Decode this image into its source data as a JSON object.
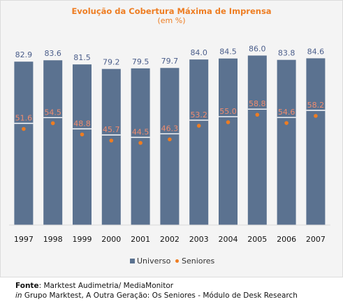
{
  "chart_data": {
    "type": "bar",
    "title": "Evolução da Cobertura Máxima de Imprensa",
    "subtitle": "(em %)",
    "categories": [
      "1997",
      "1998",
      "1999",
      "2000",
      "2001",
      "2002",
      "2003",
      "2004",
      "2005",
      "2006",
      "2007"
    ],
    "series": [
      {
        "name": "Universo",
        "values": [
          82.9,
          83.6,
          81.5,
          79.2,
          79.5,
          79.7,
          84.0,
          84.5,
          86.0,
          83.8,
          84.6
        ],
        "labels": [
          "82.9",
          "83.6",
          "81.5",
          "79.2",
          "79.5",
          "79.7",
          "84.0",
          "84.5",
          "86.0",
          "83.8",
          "84.6"
        ],
        "color": "#5b7290",
        "label_color": "#4a5d8a",
        "marker": "bar"
      },
      {
        "name": "Seniores",
        "values": [
          51.6,
          54.5,
          48.8,
          45.7,
          44.5,
          46.3,
          53.2,
          55.0,
          58.8,
          54.6,
          58.2
        ],
        "labels": [
          "51.6",
          "54.5",
          "48.8",
          "45.7",
          "44.5",
          "46.3",
          "53.2",
          "55.0",
          "58.8",
          "54.6",
          "58.2"
        ],
        "color": "#ee7d22",
        "label_color": "#f08c6e",
        "marker": "dot-overlay"
      }
    ],
    "ylim": [
      0,
      100
    ],
    "grid": false,
    "legend": "bottom-center"
  },
  "source": {
    "label": "Fonte",
    "text": ": Marktest Audimetria/ MediaMonitor",
    "in_word": "in",
    "in_text": " Grupo Marktest, A Outra Geração: Os Seniores - Módulo de Desk Research"
  }
}
